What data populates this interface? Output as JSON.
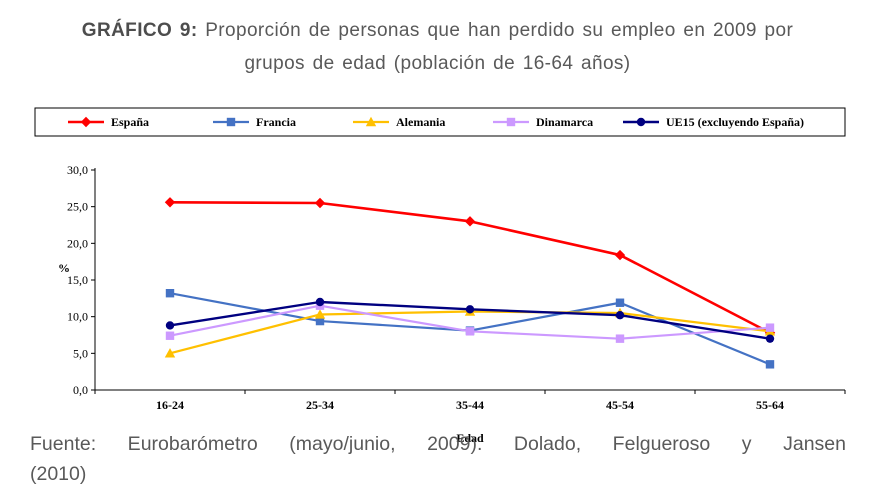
{
  "title": {
    "prefix": "GRÁFICO 9:",
    "line1_rest": " Proporción de personas que han perdido su empleo en 2009 por",
    "line2": "grupos de edad (población de 16-64 años)"
  },
  "caption": {
    "line1": "Fuente: Eurobarómetro (mayo/junio, 2009). Dolado, Felgueroso y Jansen",
    "line2": "(2010)"
  },
  "chart_data": {
    "type": "line",
    "categories": [
      "16-24",
      "25-34",
      "35-44",
      "45-54",
      "55-64"
    ],
    "series": [
      {
        "name": "España",
        "color": "#FF0000",
        "marker": "diamond",
        "line_width": 2.6,
        "values": [
          25.6,
          25.5,
          23.0,
          18.4,
          7.8
        ]
      },
      {
        "name": "Francia",
        "color": "#4472C4",
        "marker": "square",
        "line_width": 2.2,
        "values": [
          13.2,
          9.4,
          8.1,
          11.9,
          3.5
        ]
      },
      {
        "name": "Alemania",
        "color": "#FFC000",
        "marker": "triangle",
        "line_width": 2.2,
        "values": [
          5.0,
          10.3,
          10.7,
          10.5,
          8.0
        ]
      },
      {
        "name": "Dinamarca",
        "color": "#CC99FF",
        "marker": "square",
        "line_width": 2.2,
        "values": [
          7.4,
          11.5,
          8.0,
          7.0,
          8.5
        ]
      },
      {
        "name": "UE15 (excluyendo España)",
        "color": "#000080",
        "marker": "circle",
        "line_width": 2.4,
        "values": [
          8.8,
          12.0,
          11.0,
          10.2,
          7.0
        ]
      }
    ],
    "xlabel": "Edad",
    "ylabel": "%",
    "ylim": [
      0,
      30
    ],
    "ytick_labels": [
      "0,0",
      "5,0",
      "10,0",
      "15,0",
      "20,0",
      "25,0",
      "30,0"
    ],
    "grid": false,
    "legend_position": "top"
  }
}
